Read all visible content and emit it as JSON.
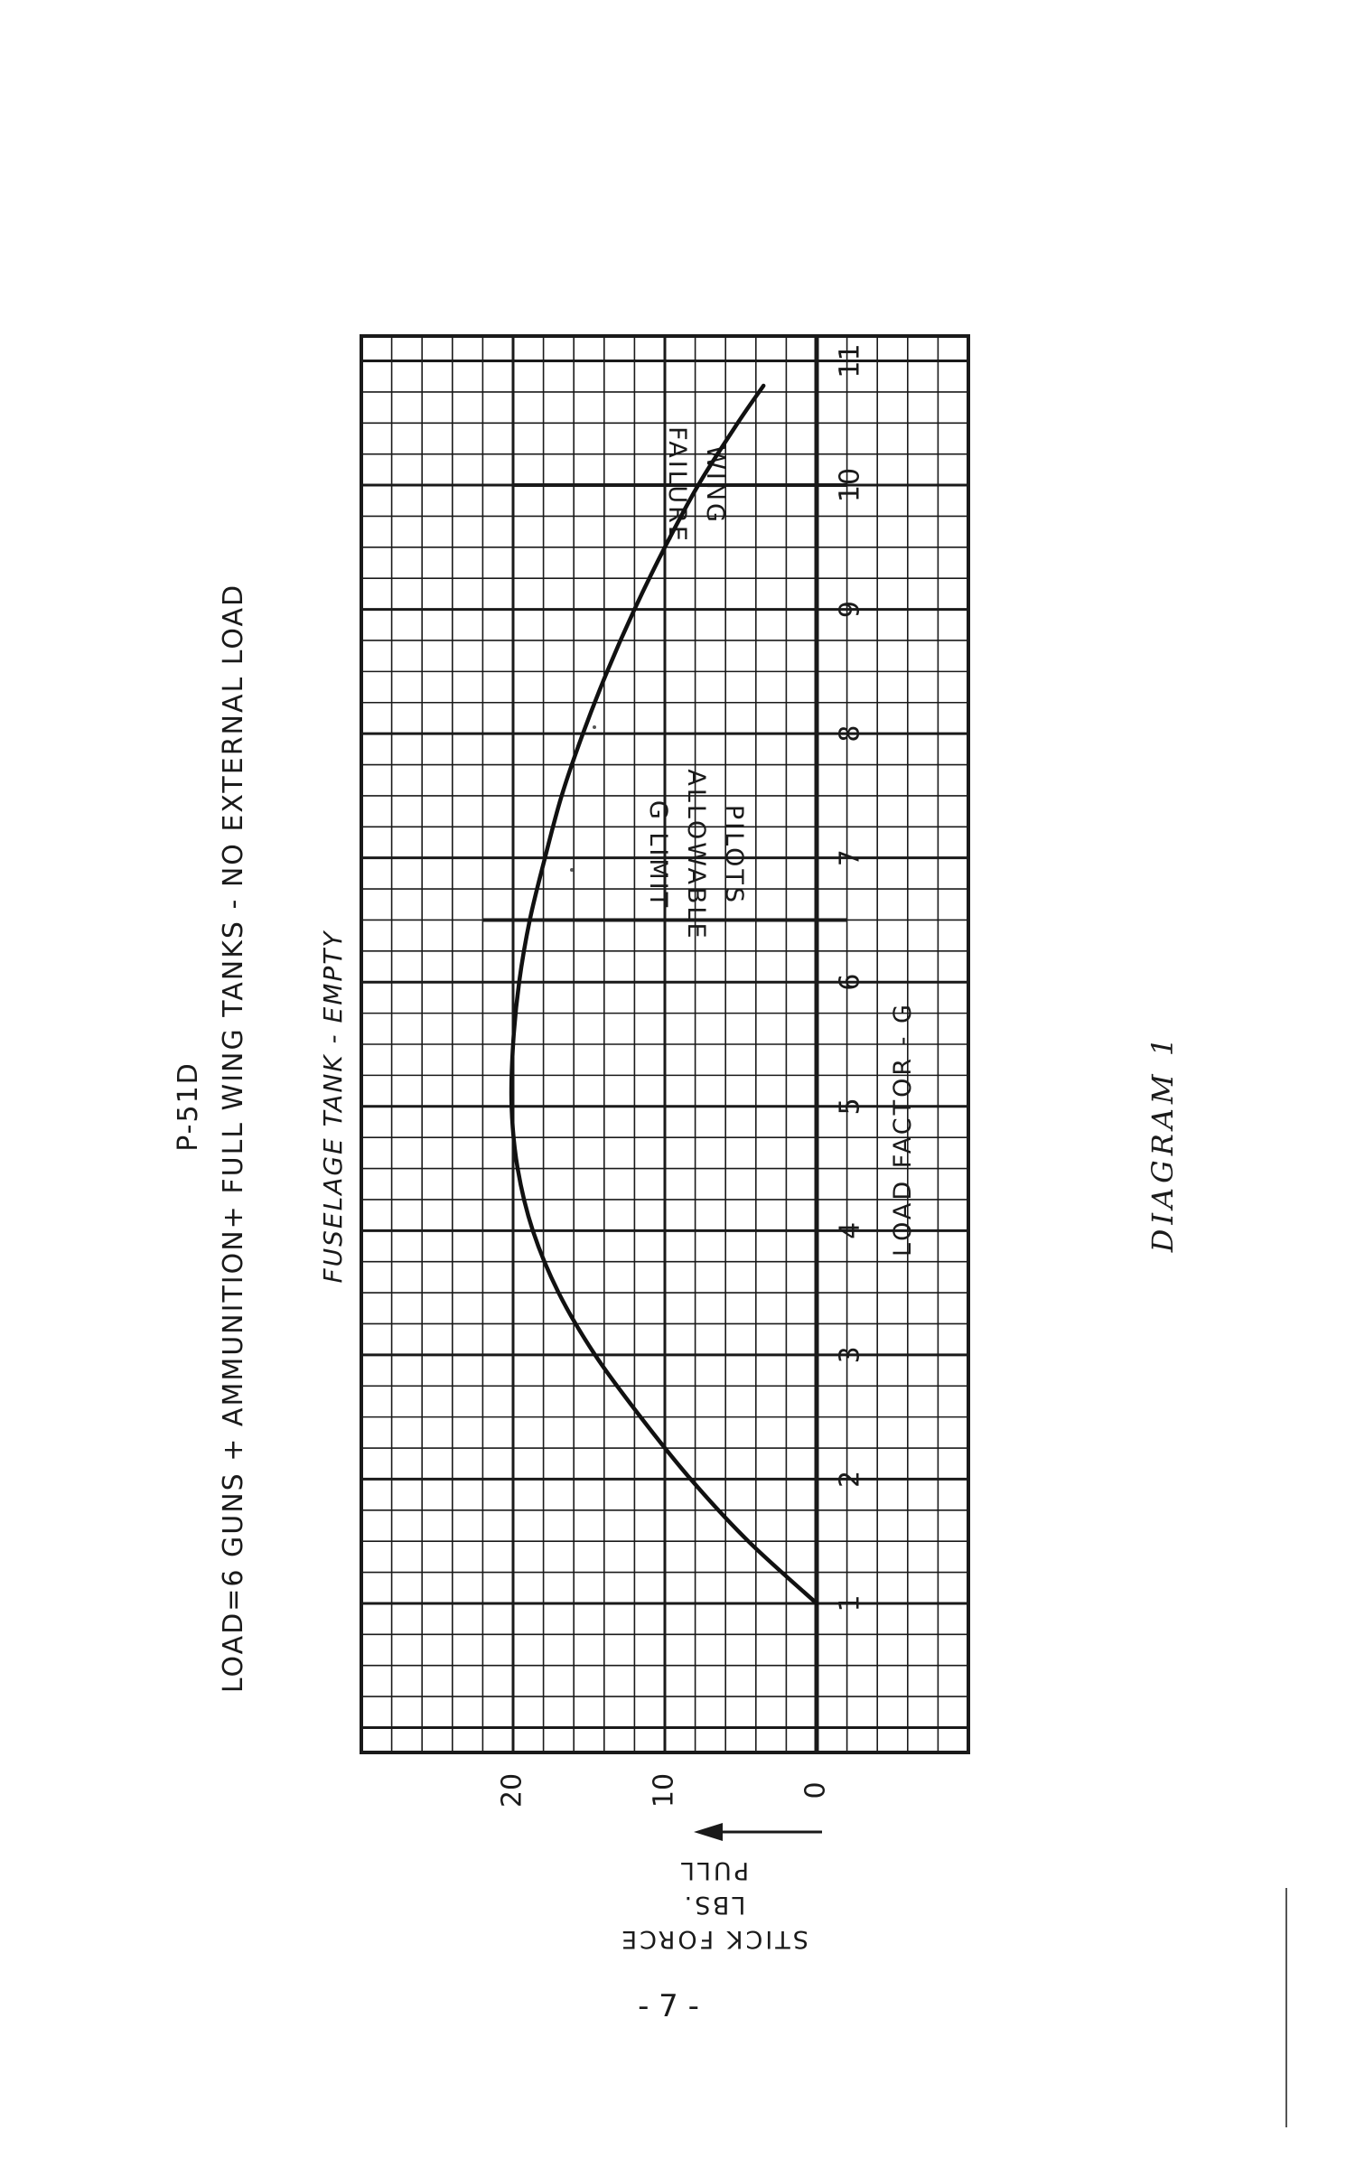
{
  "document": {
    "aircraft": "P-51D",
    "load_line": "LOAD=6 GUNS + AMMUNITION+ FULL WING TANKS - NO EXTERNAL LOAD",
    "subtitle": "FUSELAGE TANK - EMPTY",
    "caption": "DIAGRAM 1",
    "page_number": "- 7 -"
  },
  "chart_data": {
    "type": "line",
    "xlabel": "LOAD FACTOR - G",
    "ylabel_lines": [
      "STICK FORCE",
      "LBS.",
      "PULL"
    ],
    "x_ticks": [
      "1",
      "2",
      "3",
      "4",
      "5",
      "6",
      "7",
      "8",
      "9",
      "10",
      "11"
    ],
    "y_ticks": [
      "0",
      "10",
      "20"
    ],
    "xlim": [
      -0.2,
      11.2
    ],
    "ylim": [
      -10,
      30
    ],
    "grid": true,
    "series": [
      {
        "x": [
          1.0,
          1.5,
          2.0,
          2.5,
          3.0,
          3.5,
          4.0,
          4.5,
          5.0,
          5.5,
          6.0,
          6.5,
          7.0,
          7.5,
          8.0,
          8.5,
          9.0,
          9.5,
          10.0,
          10.5,
          10.8
        ],
        "y": [
          0,
          4.5,
          8.3,
          11.6,
          14.6,
          17.0,
          18.7,
          19.7,
          20.1,
          20.0,
          19.6,
          18.9,
          17.9,
          16.8,
          15.4,
          13.8,
          12.0,
          10.0,
          7.8,
          5.2,
          3.5
        ]
      }
    ],
    "annotations": [
      {
        "x": 6.5,
        "y_start": -2,
        "y_end": 22,
        "lines": [
          "PILOTS",
          "ALLOWABLE",
          "G LIMIT"
        ]
      },
      {
        "x": 10.0,
        "y_start": -2,
        "y_end": 20,
        "lines": [
          "WING",
          "FAILURE"
        ]
      }
    ]
  }
}
